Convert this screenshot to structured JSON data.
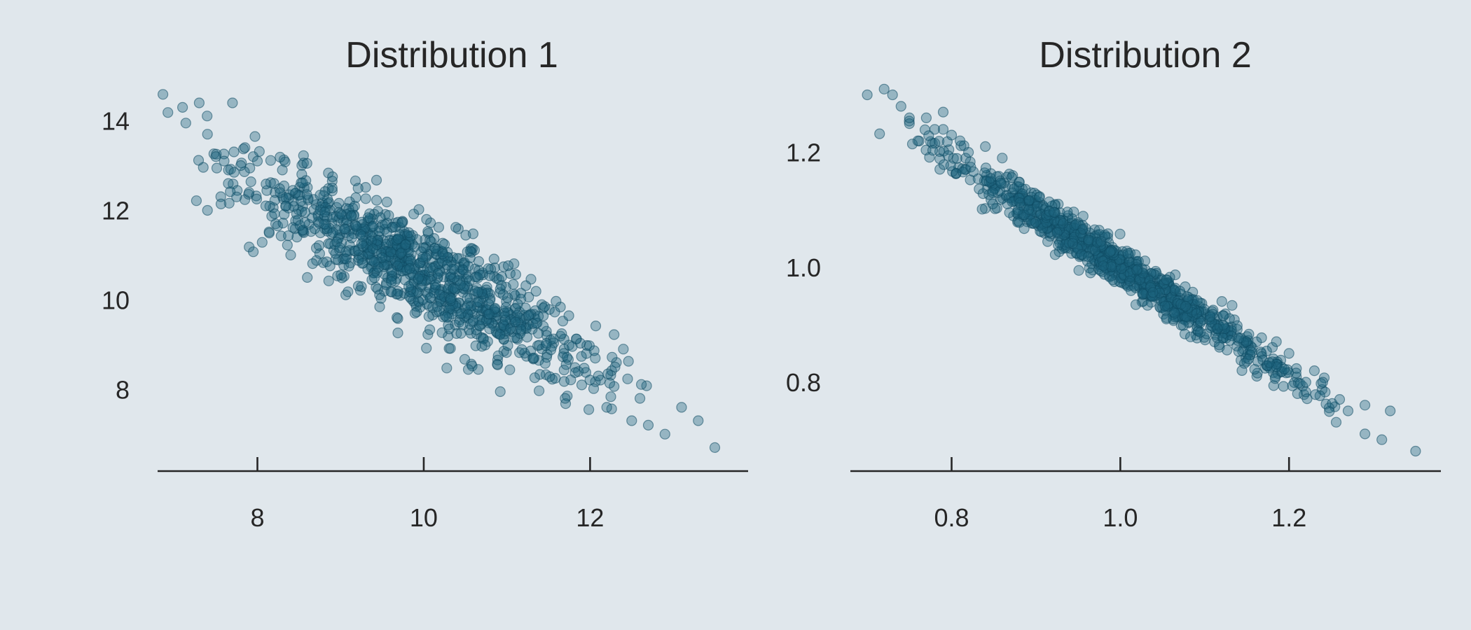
{
  "figure": {
    "background": "#e0e7ec",
    "point_color": "#1e647d",
    "point_alpha": 0.38,
    "text_color": "#262626"
  },
  "chart_data": [
    {
      "type": "scatter",
      "title": "Distribution 1",
      "xlabel": "",
      "ylabel": "",
      "xlim": [
        6.8,
        13.9
      ],
      "ylim": [
        6.3,
        14.9
      ],
      "xticks": [
        8,
        10,
        12
      ],
      "xtick_labels": [
        "8",
        "10",
        "12"
      ],
      "yticks": [
        8,
        10,
        12,
        14
      ],
      "ytick_labels": [
        "8",
        "10",
        "12",
        "14"
      ],
      "grid": false,
      "legend": "none",
      "cluster": {
        "n": 1000,
        "x_mean": 10,
        "y_mean": 10.6,
        "x_sd": 1.05,
        "slope": -1.0,
        "resid_sd": 0.55
      },
      "points": {
        "x": [
          7.1,
          7.3,
          7.7,
          7.4,
          7.5,
          7.6,
          7.65,
          7.8,
          7.9,
          7.85,
          7.4,
          7.75,
          7.95,
          8.0,
          8.1,
          8.2,
          8.3,
          8.4,
          8.6,
          8.9,
          11.7,
          12.2,
          12.3,
          12.4,
          12.5,
          12.6,
          12.9,
          13.1,
          13.3,
          13.5,
          12.7,
          12.1,
          11.9
        ],
        "y": [
          14.3,
          14.4,
          14.4,
          13.7,
          13.2,
          13.1,
          12.6,
          13.0,
          12.4,
          13.4,
          12.0,
          12.3,
          13.2,
          13.1,
          12.1,
          12.6,
          12.9,
          11.0,
          10.5,
          12.5,
          7.8,
          7.6,
          8.5,
          8.9,
          7.3,
          7.8,
          7.0,
          7.6,
          7.3,
          6.7,
          7.2,
          8.3,
          8.1
        ]
      }
    },
    {
      "type": "scatter",
      "title": "Distribution 2",
      "xlabel": "",
      "ylabel": "",
      "xlim": [
        0.68,
        1.38
      ],
      "ylim": [
        0.655,
        1.325
      ],
      "xticks": [
        0.8,
        1.0,
        1.2
      ],
      "xtick_labels": [
        "0.8",
        "1.0",
        "1.2"
      ],
      "yticks": [
        0.8,
        1.0,
        1.2
      ],
      "ytick_labels": [
        "0.8",
        "1.0",
        "1.2"
      ],
      "grid": false,
      "legend": "none",
      "cluster": {
        "n": 1000,
        "x_mean": 1.0,
        "y_mean": 1.0,
        "x_sd": 0.1,
        "slope": -0.94,
        "resid_sd": 0.018
      },
      "points": {
        "x": [
          0.7,
          0.72,
          0.73,
          0.74,
          0.75,
          0.77,
          0.78,
          0.79,
          0.8,
          0.81,
          0.82,
          0.75,
          0.76,
          0.79,
          0.84,
          0.86,
          1.26,
          1.27,
          1.29,
          1.29,
          1.31,
          1.32,
          1.35,
          1.21,
          1.22,
          1.23,
          1.24,
          1.2
        ],
        "y": [
          1.3,
          1.31,
          1.3,
          1.28,
          1.25,
          1.26,
          1.24,
          1.27,
          1.23,
          1.22,
          1.2,
          1.26,
          1.22,
          1.24,
          1.21,
          1.19,
          0.77,
          0.75,
          0.76,
          0.71,
          0.7,
          0.75,
          0.68,
          0.78,
          0.8,
          0.82,
          0.8,
          0.85
        ]
      }
    }
  ]
}
